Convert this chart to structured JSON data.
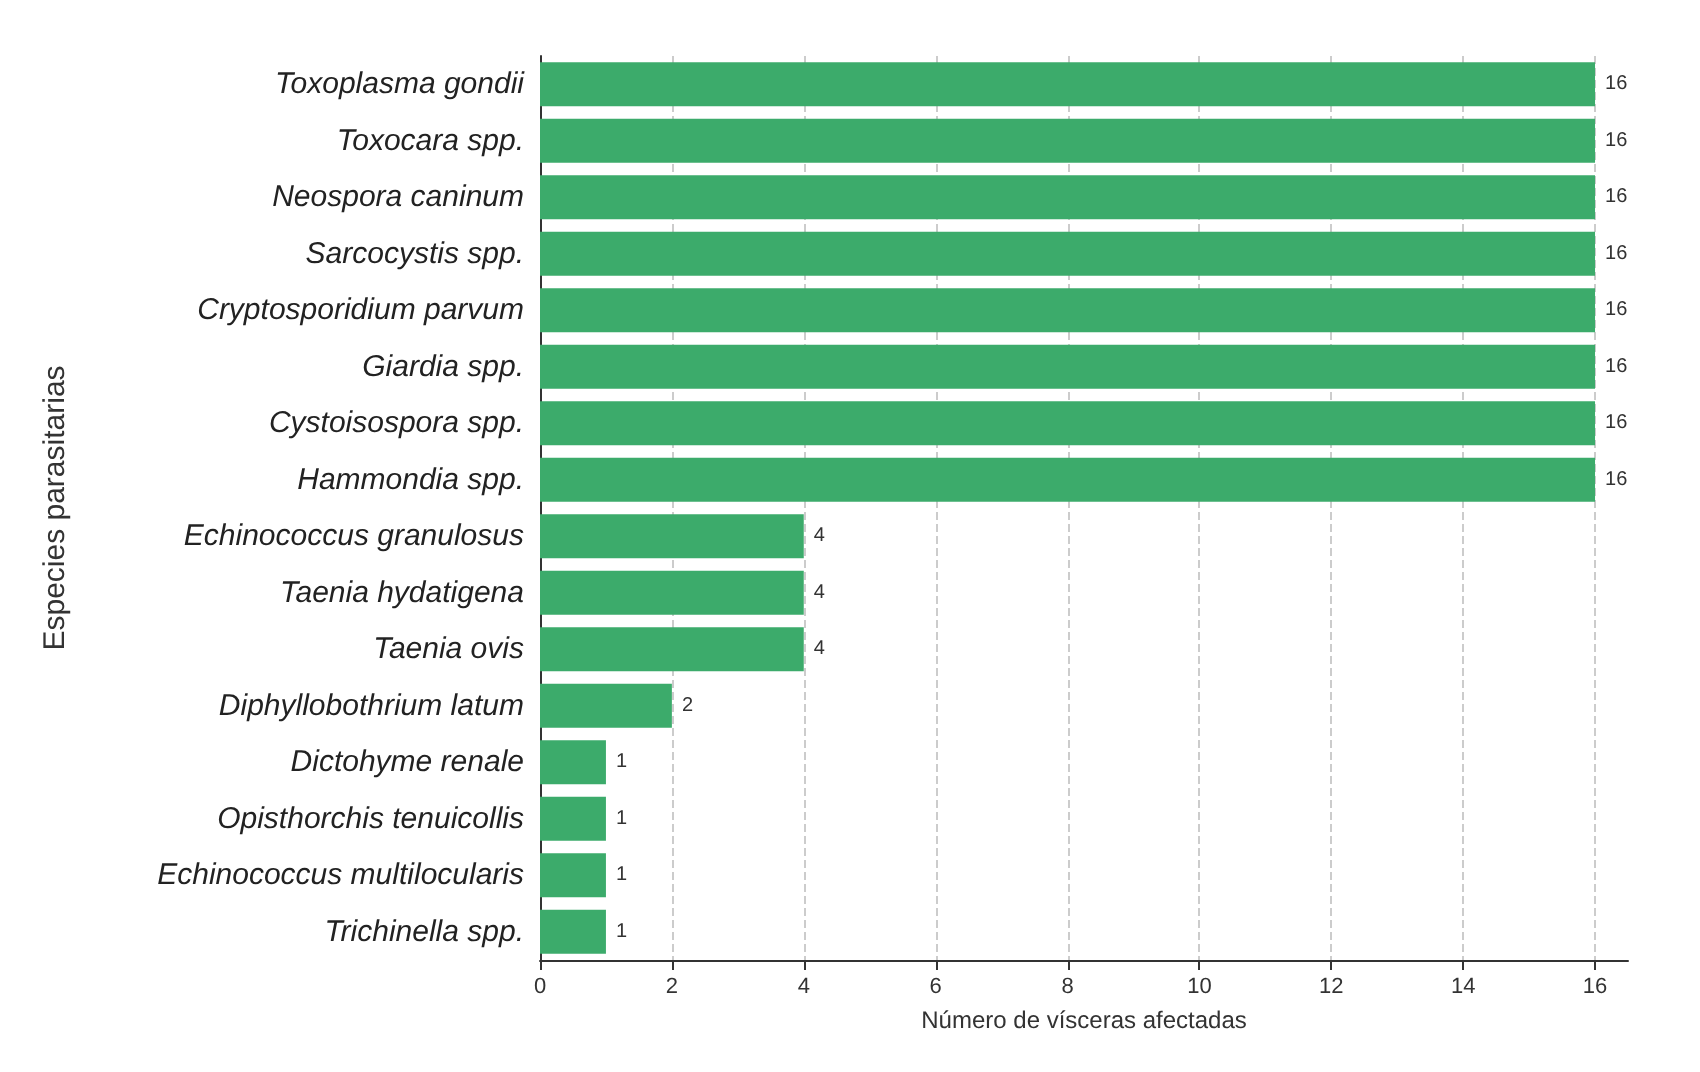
{
  "chart_data": {
    "type": "bar",
    "orientation": "horizontal",
    "xlabel": "Número de vísceras afectadas",
    "ylabel": "Especies parasitarias",
    "categories": [
      "Toxoplasma gondii",
      "Toxocara spp.",
      "Neospora caninum",
      "Sarcocystis spp.",
      "Cryptosporidium parvum",
      "Giardia spp.",
      "Cystoisospora spp.",
      "Hammondia spp.",
      "Echinococcus granulosus",
      "Taenia hydatigena",
      "Taenia ovis",
      "Diphyllobothrium latum",
      "Dictohyme renale",
      "Opisthorchis tenuicollis",
      "Echinococcus multilocularis",
      "Trichinella spp."
    ],
    "values": [
      16,
      16,
      16,
      16,
      16,
      16,
      16,
      16,
      4,
      4,
      4,
      2,
      1,
      1,
      1,
      1
    ],
    "color": "#3cab6b",
    "xlim": [
      0,
      16.5
    ],
    "xticks": [
      0,
      2,
      4,
      6,
      8,
      10,
      12,
      14,
      16
    ],
    "grid": "x",
    "data_labels": true
  }
}
